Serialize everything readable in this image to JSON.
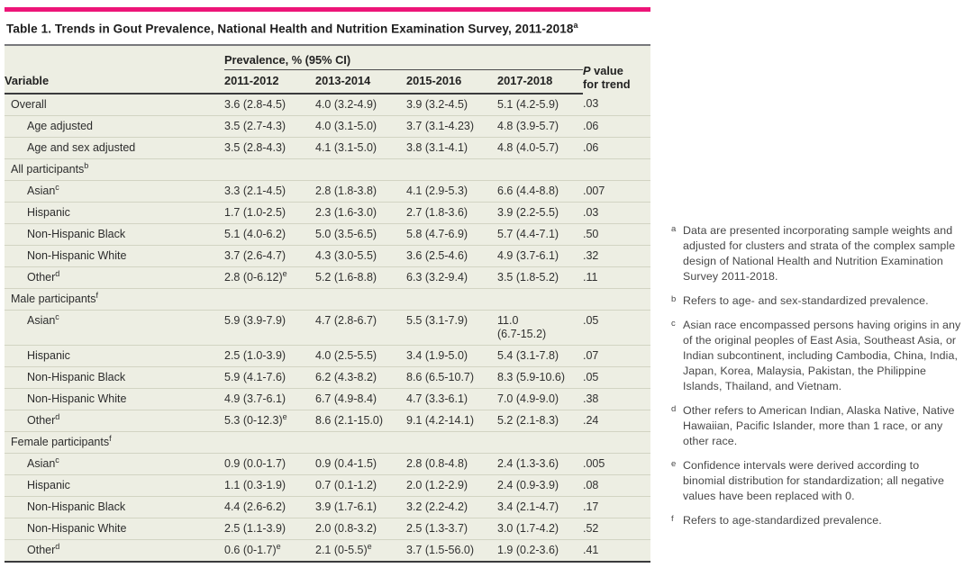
{
  "colors": {
    "accent": "#ED1478",
    "table_bg": "#EDEEE3",
    "rule_dark": "#3b3b3d",
    "rule_gray": "#77787b",
    "row_separator": "#d2d4c3"
  },
  "table": {
    "title": "Table 1. Trends in Gout Prevalence, National Health and Nutrition Examination Survey, 2011-2018",
    "title_sup": "a",
    "header": {
      "variable": "Variable",
      "group": "Prevalence, % (95% CI)",
      "columns": [
        "2011-2012",
        "2013-2014",
        "2015-2016",
        "2017-2018"
      ],
      "p_italic": "P",
      "p_rest": " value",
      "p_line2": "for trend"
    },
    "rows": [
      {
        "type": "data",
        "label": "Overall",
        "indent": 0,
        "values": [
          "3.6 (2.8-4.5)",
          "4.0 (3.2-4.9)",
          "3.9 (3.2-4.5)",
          "5.1 (4.2-5.9)"
        ],
        "p": ".03"
      },
      {
        "type": "data",
        "label": "Age adjusted",
        "indent": 1,
        "values": [
          "3.5 (2.7-4.3)",
          "4.0 (3.1-5.0)",
          "3.7 (3.1-4.23)",
          "4.8 (3.9-5.7)"
        ],
        "p": ".06"
      },
      {
        "type": "data",
        "label": "Age and sex adjusted",
        "indent": 1,
        "values": [
          "3.5 (2.8-4.3)",
          "4.1 (3.1-5.0)",
          "3.8 (3.1-4.1)",
          "4.8 (4.0-5.7)"
        ],
        "p": ".06"
      },
      {
        "type": "section",
        "label": "All participants",
        "sup": "b"
      },
      {
        "type": "data",
        "label": "Asian",
        "sup": "c",
        "indent": 1,
        "values": [
          "3.3 (2.1-4.5)",
          "2.8 (1.8-3.8)",
          "4.1 (2.9-5.3)",
          "6.6 (4.4-8.8)"
        ],
        "p": ".007"
      },
      {
        "type": "data",
        "label": "Hispanic",
        "indent": 1,
        "values": [
          "1.7 (1.0-2.5)",
          "2.3 (1.6-3.0)",
          "2.7 (1.8-3.6)",
          "3.9 (2.2-5.5)"
        ],
        "p": ".03"
      },
      {
        "type": "data",
        "label": "Non-Hispanic Black",
        "indent": 1,
        "values": [
          "5.1 (4.0-6.2)",
          "5.0 (3.5-6.5)",
          "5.8 (4.7-6.9)",
          "5.7 (4.4-7.1)"
        ],
        "p": ".50"
      },
      {
        "type": "data",
        "label": "Non-Hispanic White",
        "indent": 1,
        "values": [
          "3.7 (2.6-4.7)",
          "4.3 (3.0-5.5)",
          "3.6 (2.5-4.6)",
          "4.9 (3.7-6.1)"
        ],
        "p": ".32"
      },
      {
        "type": "data",
        "label": "Other",
        "sup": "d",
        "indent": 1,
        "values": [
          {
            "v": "2.8 (0-6.12)",
            "sup": "e"
          },
          "5.2 (1.6-8.8)",
          "6.3 (3.2-9.4)",
          "3.5 (1.8-5.2)"
        ],
        "p": ".11"
      },
      {
        "type": "section",
        "label": "Male participants",
        "sup": "f"
      },
      {
        "type": "data",
        "label": "Asian",
        "sup": "c",
        "indent": 1,
        "values": [
          "5.9 (3.9-7.9)",
          "4.7 (2.8-6.7)",
          "5.5 (3.1-7.9)",
          "11.0\n(6.7-15.2)"
        ],
        "p": ".05"
      },
      {
        "type": "data",
        "label": "Hispanic",
        "indent": 1,
        "values": [
          "2.5 (1.0-3.9)",
          "4.0 (2.5-5.5)",
          "3.4 (1.9-5.0)",
          "5.4 (3.1-7.8)"
        ],
        "p": ".07"
      },
      {
        "type": "data",
        "label": "Non-Hispanic Black",
        "indent": 1,
        "values": [
          "5.9 (4.1-7.6)",
          "6.2 (4.3-8.2)",
          "8.6 (6.5-10.7)",
          "8.3 (5.9-10.6)"
        ],
        "p": ".05"
      },
      {
        "type": "data",
        "label": "Non-Hispanic White",
        "indent": 1,
        "values": [
          "4.9 (3.7-6.1)",
          "6.7 (4.9-8.4)",
          "4.7 (3.3-6.1)",
          "7.0 (4.9-9.0)"
        ],
        "p": ".38"
      },
      {
        "type": "data",
        "label": "Other",
        "sup": "d",
        "indent": 1,
        "values": [
          {
            "v": "5.3 (0-12.3)",
            "sup": "e"
          },
          "8.6 (2.1-15.0)",
          "9.1 (4.2-14.1)",
          "5.2 (2.1-8.3)"
        ],
        "p": ".24"
      },
      {
        "type": "section",
        "label": "Female participants",
        "sup": "f"
      },
      {
        "type": "data",
        "label": "Asian",
        "sup": "c",
        "indent": 1,
        "values": [
          "0.9 (0.0-1.7)",
          "0.9 (0.4-1.5)",
          "2.8 (0.8-4.8)",
          "2.4 (1.3-3.6)"
        ],
        "p": ".005"
      },
      {
        "type": "data",
        "label": "Hispanic",
        "indent": 1,
        "values": [
          "1.1 (0.3-1.9)",
          "0.7 (0.1-1.2)",
          "2.0 (1.2-2.9)",
          "2.4 (0.9-3.9)"
        ],
        "p": ".08"
      },
      {
        "type": "data",
        "label": "Non-Hispanic Black",
        "indent": 1,
        "values": [
          "4.4 (2.6-6.2)",
          "3.9 (1.7-6.1)",
          "3.2 (2.2-4.2)",
          "3.4 (2.1-4.7)"
        ],
        "p": ".17"
      },
      {
        "type": "data",
        "label": "Non-Hispanic White",
        "indent": 1,
        "values": [
          "2.5 (1.1-3.9)",
          "2.0 (0.8-3.2)",
          "2.5 (1.3-3.7)",
          "3.0 (1.7-4.2)"
        ],
        "p": ".52"
      },
      {
        "type": "data",
        "label": "Other",
        "sup": "d",
        "indent": 1,
        "values": [
          {
            "v": "0.6 (0-1.7)",
            "sup": "e"
          },
          {
            "v": "2.1 (0-5.5)",
            "sup": "e"
          },
          "3.7 (1.5-56.0)",
          "1.9 (0.2-3.6)"
        ],
        "p": ".41"
      }
    ]
  },
  "footnotes": [
    {
      "marker": "a",
      "text": "Data are presented incorporating sample weights and adjusted for clusters and strata of the complex sample design of National Health and Nutrition Examination Survey 2011-2018."
    },
    {
      "marker": "b",
      "text": "Refers to age- and sex-standardized prevalence."
    },
    {
      "marker": "c",
      "text": "Asian race encompassed persons having origins in any of the original peoples of East Asia, Southeast Asia, or Indian subcontinent, including Cambodia, China, India, Japan, Korea, Malaysia, Pakistan, the Philippine Islands, Thailand, and Vietnam."
    },
    {
      "marker": "d",
      "text": "Other refers to American Indian, Alaska Native, Native Hawaiian, Pacific Islander, more than 1 race, or any other race."
    },
    {
      "marker": "e",
      "text": "Confidence intervals were derived according to binomial distribution for standardization; all negative values have been replaced with 0."
    },
    {
      "marker": "f",
      "text": "Refers to age-standardized prevalence."
    }
  ]
}
